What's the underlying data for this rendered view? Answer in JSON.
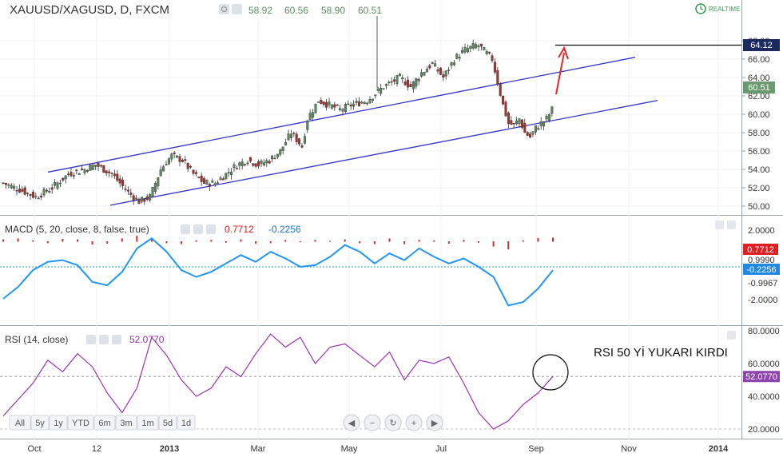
{
  "header": {
    "symbol": "XAUUSD/XAGUSD, D, FXCM",
    "open": "58.92",
    "high": "60.56",
    "low": "58.90",
    "close": "60.51",
    "realtime_label": "REALTIME"
  },
  "macd_panel": {
    "label": "MACD (5, 20, close, 8, false, true)",
    "value1": "0.7712",
    "value2": "-0.2256",
    "ticks": [
      "2.0000",
      "0.9990",
      "-0.9967",
      "-2.0000"
    ],
    "badge_hist": "0.7712",
    "badge_line": "-0.2256"
  },
  "rsi_panel": {
    "label": "RSI (14, close)",
    "value": "52.0770",
    "ticks": [
      "80.0000",
      "60.0000",
      "40.0000",
      "20.0000"
    ],
    "badge": "52.0770",
    "annotation": "RSI 50 Yİ YUKARI KIRDI"
  },
  "timeframes": [
    "All",
    "5y",
    "1y",
    "YTD",
    "6m",
    "3m",
    "1m",
    "5d",
    "1d"
  ],
  "nav_buttons": [
    "scroll-left",
    "zoom-out",
    "reset",
    "zoom-in",
    "scroll-right"
  ],
  "colors": {
    "up": "#5b8a5e",
    "down": "#a4332e",
    "channel": "#3333cc",
    "macd_line": "#2196f3",
    "macd_hist_up": "#cc3333",
    "rsi_line": "#9933aa",
    "arrow": "#e8262a"
  },
  "chart_data": {
    "type": "candlestick",
    "x_ticks": [
      "Oct",
      "12",
      "2013",
      "Mar",
      "May",
      "Jul",
      "Sep",
      "Nov",
      "2014"
    ],
    "y_ticks": [
      50,
      52,
      54,
      56,
      58,
      60,
      62,
      64,
      66,
      68
    ],
    "ylim": [
      49.5,
      68.2
    ],
    "price_path": [
      [
        0,
        52.5
      ],
      [
        6,
        51.8
      ],
      [
        12,
        51.0
      ],
      [
        18,
        52.0
      ],
      [
        24,
        53.5
      ],
      [
        30,
        54.0
      ],
      [
        34,
        54.5
      ],
      [
        40,
        53.5
      ],
      [
        46,
        51.5
      ],
      [
        50,
        50.5
      ],
      [
        54,
        51.0
      ],
      [
        58,
        54.0
      ],
      [
        62,
        55.5
      ],
      [
        66,
        55.0
      ],
      [
        70,
        53.5
      ],
      [
        74,
        52.5
      ],
      [
        78,
        52.5
      ],
      [
        82,
        53.5
      ],
      [
        86,
        54.5
      ],
      [
        90,
        55.0
      ],
      [
        94,
        54.5
      ],
      [
        98,
        55.0
      ],
      [
        102,
        56.0
      ],
      [
        106,
        58.0
      ],
      [
        110,
        56.5
      ],
      [
        112,
        59.5
      ],
      [
        116,
        61.5
      ],
      [
        120,
        61.0
      ],
      [
        124,
        60.5
      ],
      [
        128,
        61.0
      ],
      [
        134,
        61.5
      ],
      [
        140,
        63.0
      ],
      [
        146,
        64.0
      ],
      [
        150,
        63.0
      ],
      [
        154,
        64.5
      ],
      [
        158,
        65.5
      ],
      [
        162,
        64.0
      ],
      [
        166,
        66.0
      ],
      [
        170,
        67.0
      ],
      [
        174,
        67.5
      ],
      [
        176,
        67.2
      ],
      [
        180,
        66.0
      ],
      [
        182,
        63.5
      ],
      [
        184,
        61.0
      ],
      [
        186,
        59.0
      ],
      [
        188,
        58.8
      ],
      [
        190,
        59.5
      ],
      [
        192,
        58.0
      ],
      [
        194,
        57.5
      ],
      [
        196,
        58.5
      ],
      [
        198,
        59.0
      ],
      [
        200,
        59.5
      ],
      [
        202,
        60.51
      ]
    ],
    "channel_upper": {
      "start": [
        60,
        53.7
      ],
      "end": [
        795,
        66.2
      ]
    },
    "channel_lower": {
      "start": [
        138,
        50.1
      ],
      "end": [
        823,
        61.5
      ]
    },
    "horizontal_level": 64.12,
    "current_price": 60.51,
    "macd": {
      "line": [
        -1.9,
        -1.2,
        -0.2,
        0.3,
        0.4,
        0.1,
        -0.9,
        -1.1,
        -0.3,
        1.1,
        1.7,
        0.9,
        -0.2,
        -0.6,
        -0.3,
        0.2,
        0.7,
        0.3,
        0.9,
        0.5,
        0.0,
        0.1,
        0.6,
        1.3,
        0.9,
        0.2,
        0.8,
        0.4,
        1.1,
        0.6,
        0.2,
        0.5,
        0.0,
        -0.6,
        -2.3,
        -2.1,
        -1.3,
        -0.2
      ],
      "histogram": [
        0.4,
        0.6,
        0.2,
        -0.3,
        0.5,
        0.4,
        -0.6,
        -0.4,
        0.6,
        1.2,
        0.5,
        -0.3,
        -0.5,
        0.2,
        0.3,
        -0.2,
        0.4,
        -0.4,
        -0.3,
        0.3,
        -0.1,
        0.3,
        0.1,
        0.4,
        -0.3,
        -0.5,
        0.6,
        -0.5,
        0.3,
        0.2,
        -0.4,
        0.3,
        -0.2,
        -1.0,
        -1.6,
        0.2,
        0.7,
        0.77
      ]
    },
    "rsi": [
      28,
      38,
      48,
      62,
      55,
      66,
      58,
      42,
      30,
      45,
      76,
      65,
      50,
      40,
      45,
      58,
      52,
      66,
      78,
      70,
      76,
      60,
      70,
      72,
      65,
      58,
      67,
      50,
      62,
      60,
      64,
      48,
      30,
      20,
      25,
      35,
      42,
      52.08
    ],
    "rsi_reference": 52.08
  }
}
